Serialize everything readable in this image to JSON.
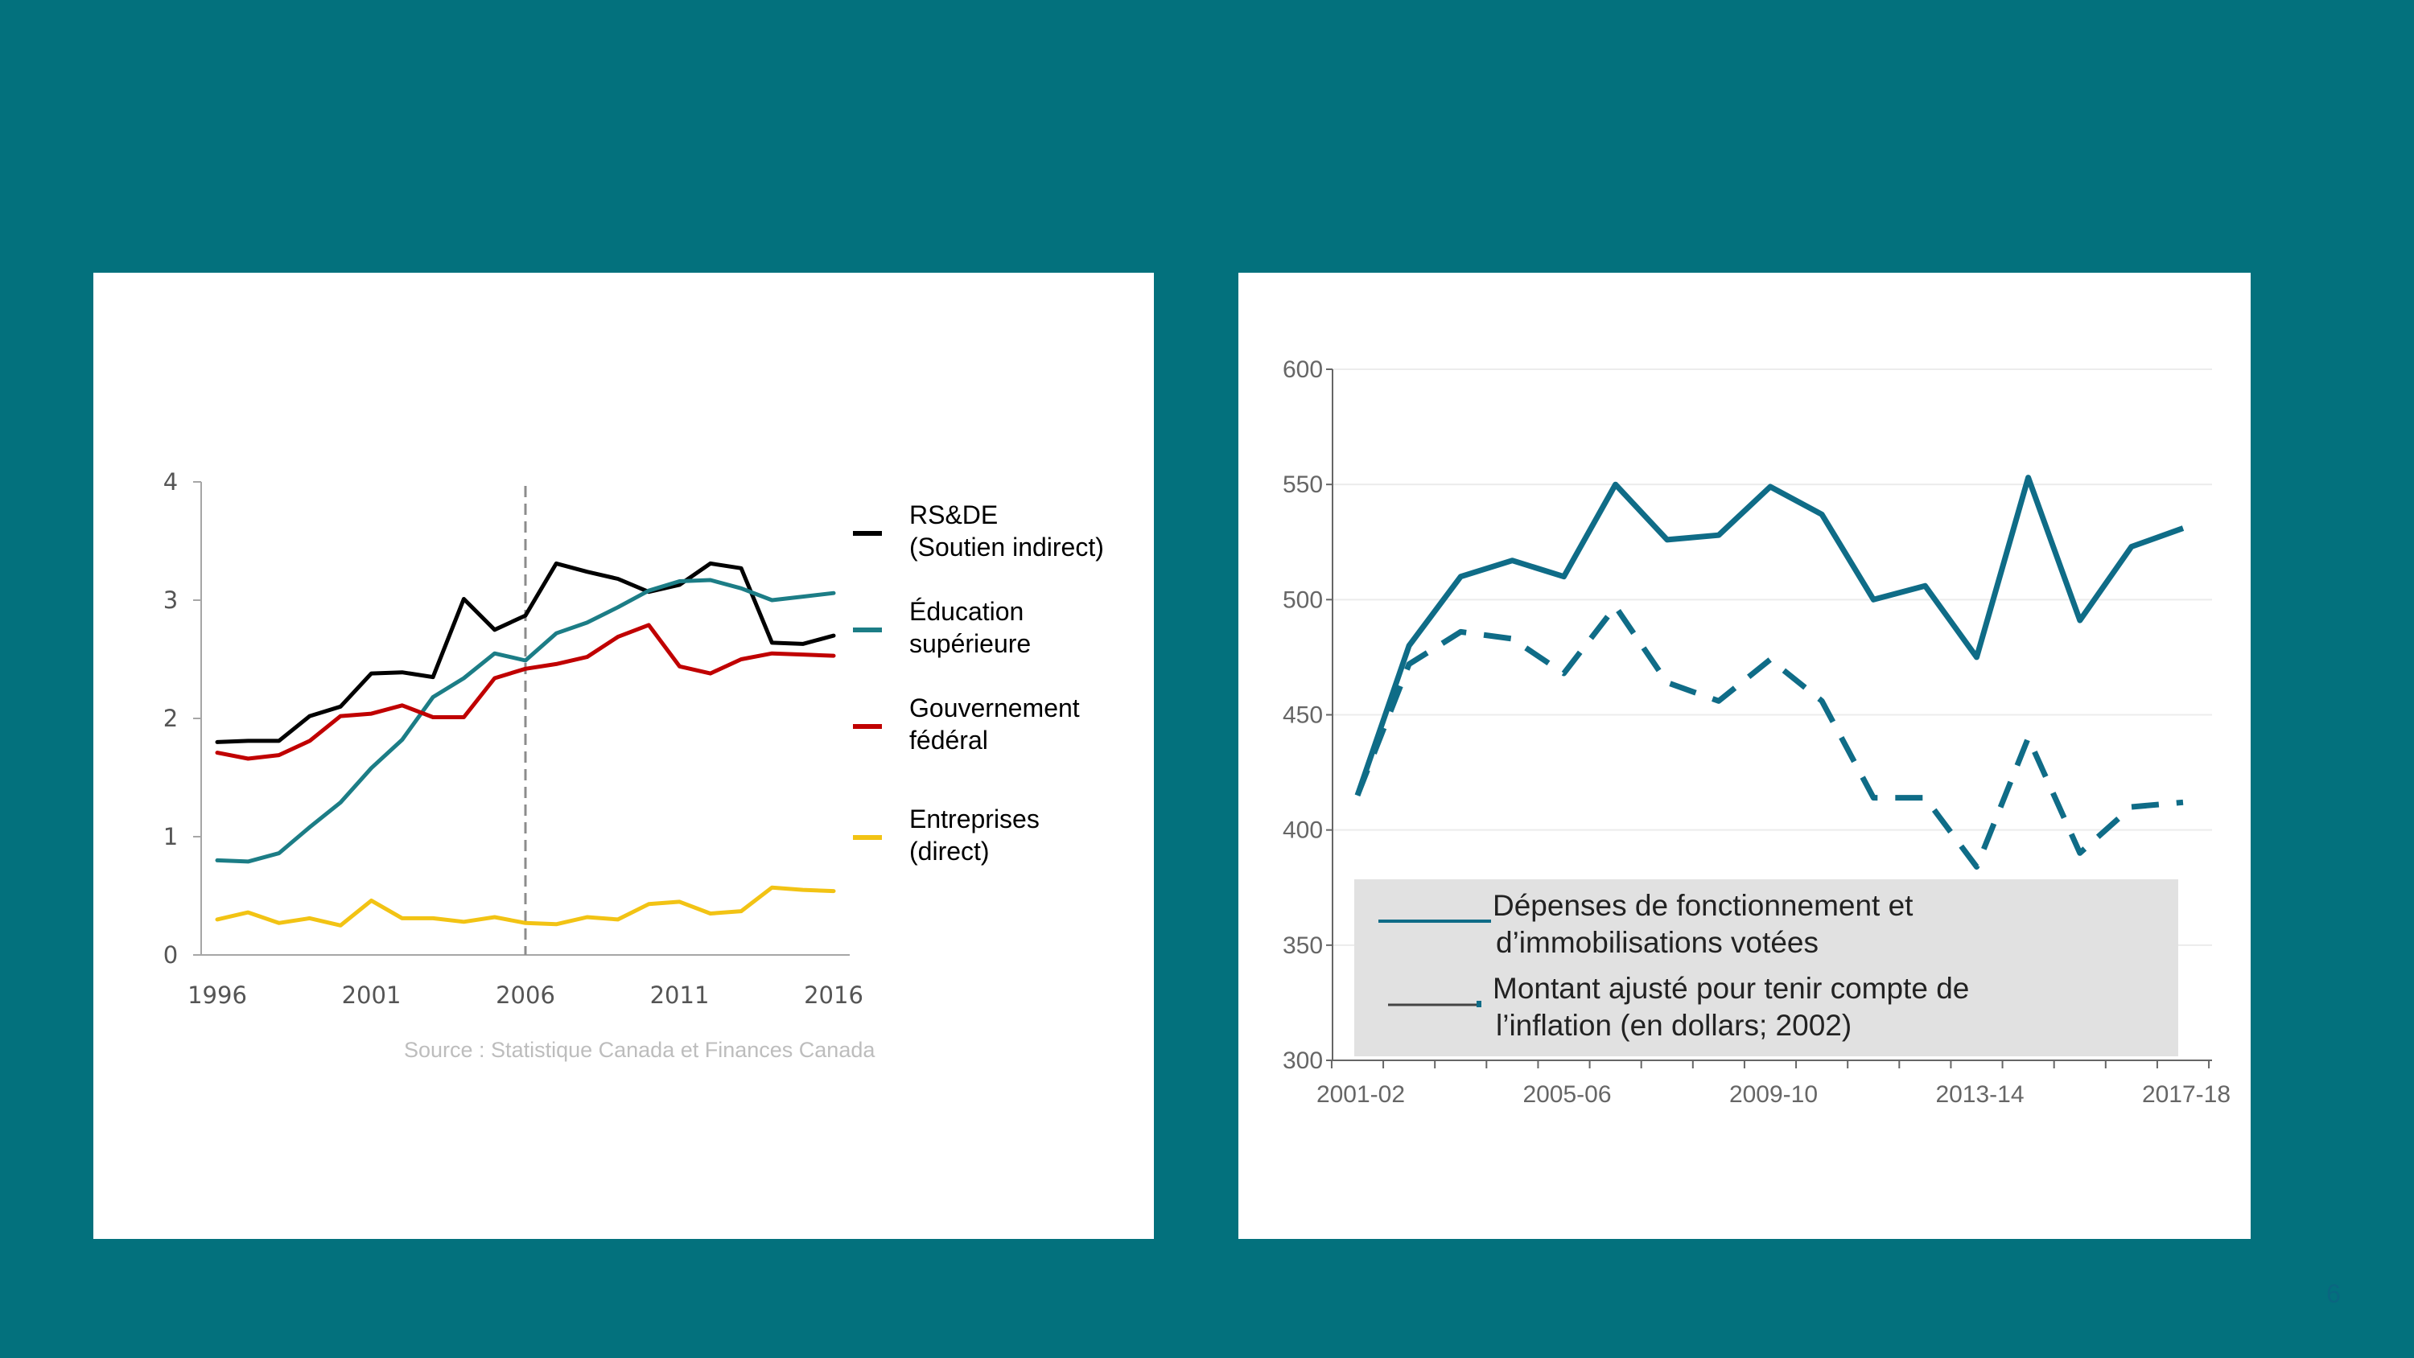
{
  "page_number": "6",
  "chart_data": [
    {
      "type": "line",
      "title": "",
      "xlabel": "",
      "ylabel": "",
      "ylim": [
        0,
        4
      ],
      "yticks": [
        "0",
        "1",
        "2",
        "3",
        "4"
      ],
      "xtick_labels": [
        "1996",
        "2001",
        "2006",
        "2011",
        "2016"
      ],
      "x": [
        1996,
        1997,
        1998,
        1999,
        2000,
        2001,
        2002,
        2003,
        2004,
        2005,
        2006,
        2007,
        2008,
        2009,
        2010,
        2011,
        2012,
        2013,
        2014,
        2015,
        2016
      ],
      "reference_line": {
        "x": 2006,
        "style": "dashed"
      },
      "legend_position": "right",
      "series": [
        {
          "name": "RS&DE (Soutien indirect)",
          "label_lines": [
            "RS&DE",
            "(Soutien indirect)"
          ],
          "color": "#000000",
          "values": [
            1.8,
            1.81,
            1.81,
            2.02,
            2.1,
            2.38,
            2.39,
            2.35,
            3.01,
            2.75,
            2.87,
            3.31,
            3.24,
            3.18,
            3.07,
            3.13,
            3.31,
            3.27,
            2.64,
            2.63,
            2.7
          ]
        },
        {
          "name": "Éducation supérieure",
          "label_lines": [
            "Éducation",
            "supérieure"
          ],
          "color": "#1c7d86",
          "values": [
            0.8,
            0.79,
            0.86,
            1.08,
            1.29,
            1.58,
            1.82,
            2.18,
            2.34,
            2.55,
            2.49,
            2.72,
            2.81,
            2.94,
            3.08,
            3.16,
            3.17,
            3.1,
            3.0,
            3.03,
            3.06
          ]
        },
        {
          "name": "Gouvernement fédéral",
          "label_lines": [
            "Gouvernement",
            "fédéral"
          ],
          "color": "#c00000",
          "values": [
            1.71,
            1.66,
            1.69,
            1.81,
            2.02,
            2.04,
            2.11,
            2.01,
            2.01,
            2.34,
            2.42,
            2.46,
            2.52,
            2.69,
            2.79,
            2.44,
            2.38,
            2.5,
            2.55,
            2.54,
            2.53
          ]
        },
        {
          "name": "Entreprises (direct)",
          "label_lines": [
            "Entreprises",
            "(direct)"
          ],
          "color": "#f2c314",
          "values": [
            0.3,
            0.36,
            0.27,
            0.31,
            0.25,
            0.46,
            0.31,
            0.31,
            0.28,
            0.32,
            0.27,
            0.26,
            0.32,
            0.3,
            0.43,
            0.45,
            0.35,
            0.37,
            0.57,
            0.55,
            0.54
          ]
        }
      ],
      "source": "Source : Statistique Canada et Finances  Canada"
    },
    {
      "type": "line",
      "title": "",
      "xlabel": "",
      "ylabel": "",
      "ylim": [
        300,
        600
      ],
      "yticks": [
        "300",
        "350",
        "400",
        "450",
        "500",
        "550",
        "600"
      ],
      "xtick_labels": [
        "2001-02",
        "2005-06",
        "2009-10",
        "2013-14",
        "2017-18"
      ],
      "x": [
        2001,
        2002,
        2003,
        2004,
        2005,
        2006,
        2007,
        2008,
        2009,
        2010,
        2011,
        2012,
        2013,
        2014,
        2015,
        2016,
        2017
      ],
      "legend_position": "bottom",
      "series": [
        {
          "name": "Dépenses de fonctionnement et d’immobilisations votées",
          "label_lines": [
            "Dépenses de fonctionnement et",
            "d’immobilisations votées"
          ],
          "color": "#0f6c87",
          "style": "solid",
          "values": [
            415,
            480,
            510,
            517,
            510,
            550,
            526,
            528,
            549,
            537,
            500,
            506,
            475,
            553,
            491,
            523,
            531
          ]
        },
        {
          "name": "Montant ajusté pour tenir compte de l’inflation (en dollars; 2002)",
          "label_lines": [
            "Montant ajusté pour tenir compte de",
            "l’inflation (en dollars; 2002)"
          ],
          "color": "#0f6c87",
          "style": "dashed",
          "values": [
            415,
            472,
            486,
            483,
            468,
            497,
            464,
            456,
            474,
            456,
            414,
            414,
            384,
            440,
            390,
            410,
            412
          ]
        }
      ]
    }
  ]
}
